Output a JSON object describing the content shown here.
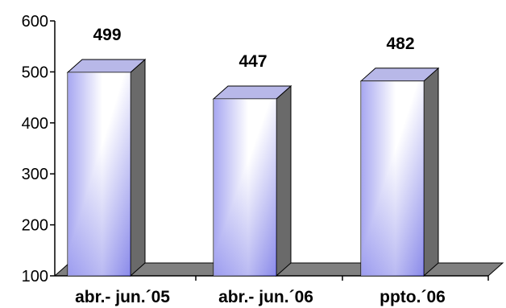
{
  "chart_data": {
    "type": "bar",
    "style": "3d-column",
    "categories": [
      "abr.- jun.´05",
      "abr.- jun.´06",
      "ppto.´06"
    ],
    "values": [
      499,
      447,
      482
    ],
    "data_labels": [
      "499",
      "447",
      "482"
    ],
    "ylim": [
      100,
      600
    ],
    "yticks": [
      "100",
      "200",
      "300",
      "400",
      "500",
      "600"
    ],
    "title": "",
    "xlabel": "",
    "ylabel": "",
    "grid": false,
    "legend": "none",
    "colors": {
      "bar_dark": "#2a2ad8",
      "bar_light": "#ffffff",
      "bar_side": "#6a6a6a",
      "bar_top": "#b8b8e8",
      "floor": "#808080",
      "axis": "#000000"
    }
  }
}
